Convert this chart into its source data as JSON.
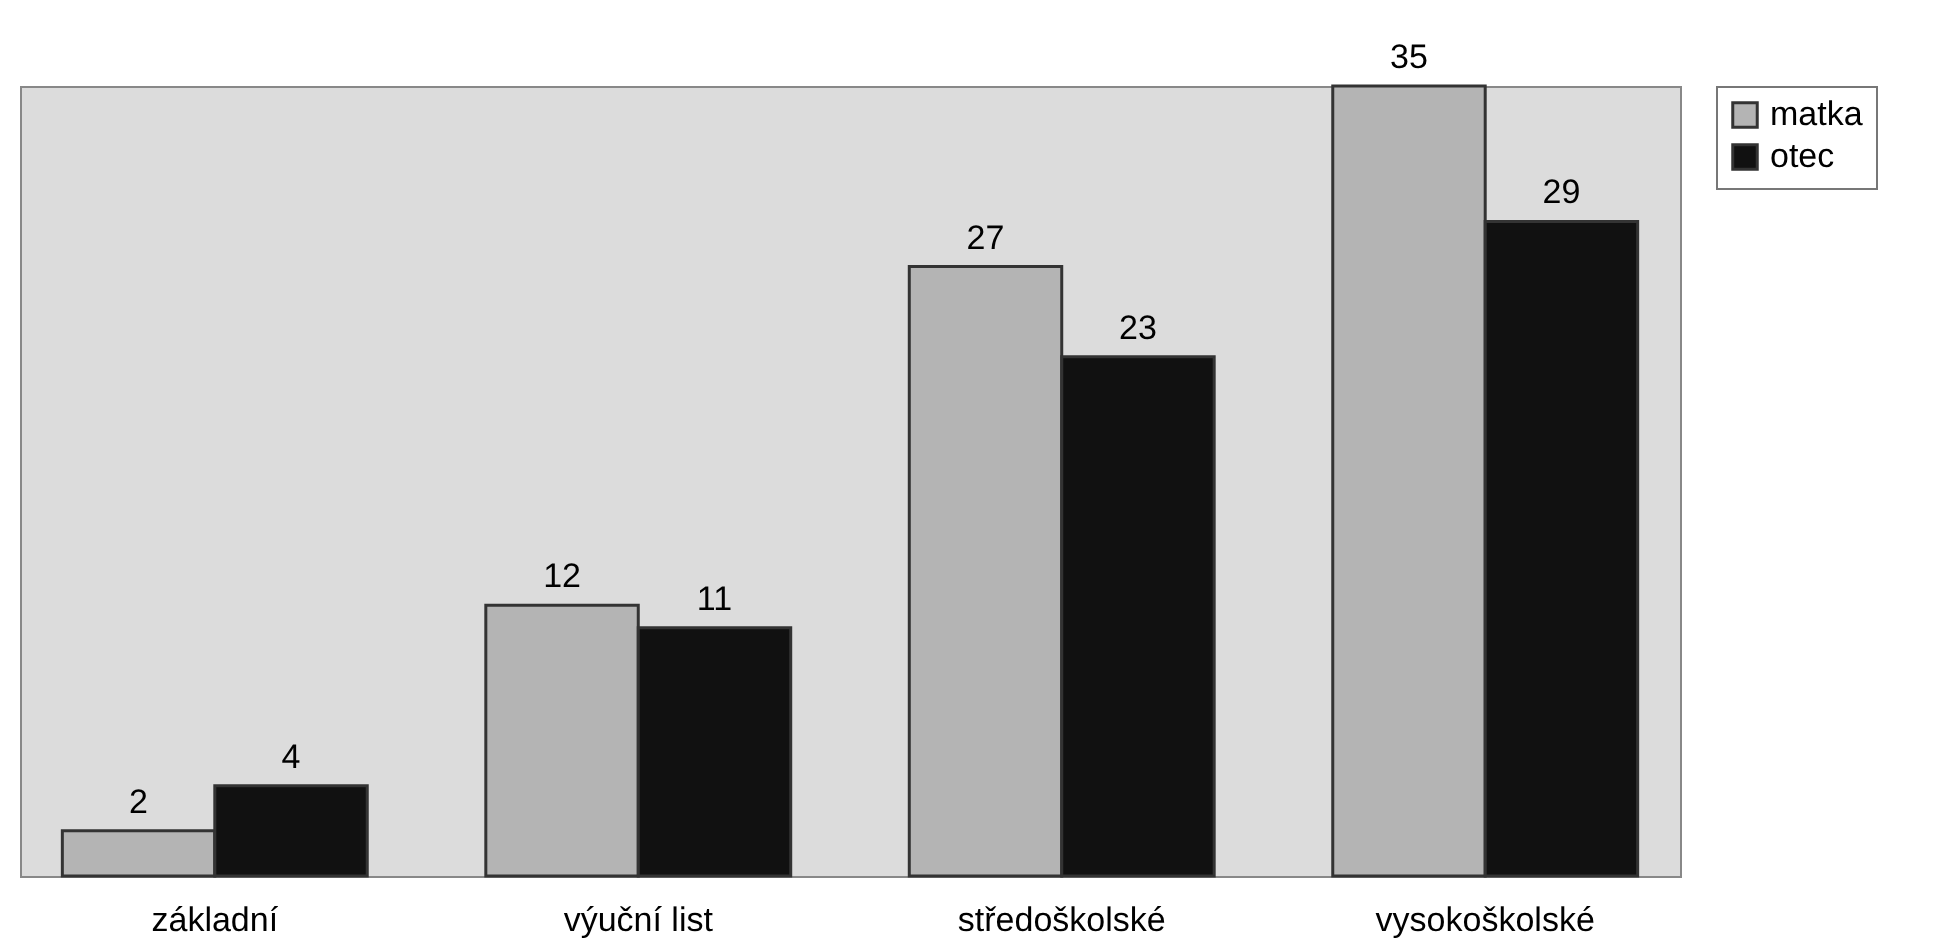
{
  "chart_data": {
    "type": "bar",
    "categories": [
      "základní",
      "výuční list",
      "středoškolské",
      "vysokoškolské"
    ],
    "series": [
      {
        "name": "matka",
        "color": "#b4b4b4",
        "values": [
          2,
          12,
          27,
          35
        ]
      },
      {
        "name": "otec",
        "color": "#111111",
        "values": [
          4,
          11,
          23,
          29
        ]
      }
    ],
    "data_labels": true,
    "legend": "right"
  }
}
